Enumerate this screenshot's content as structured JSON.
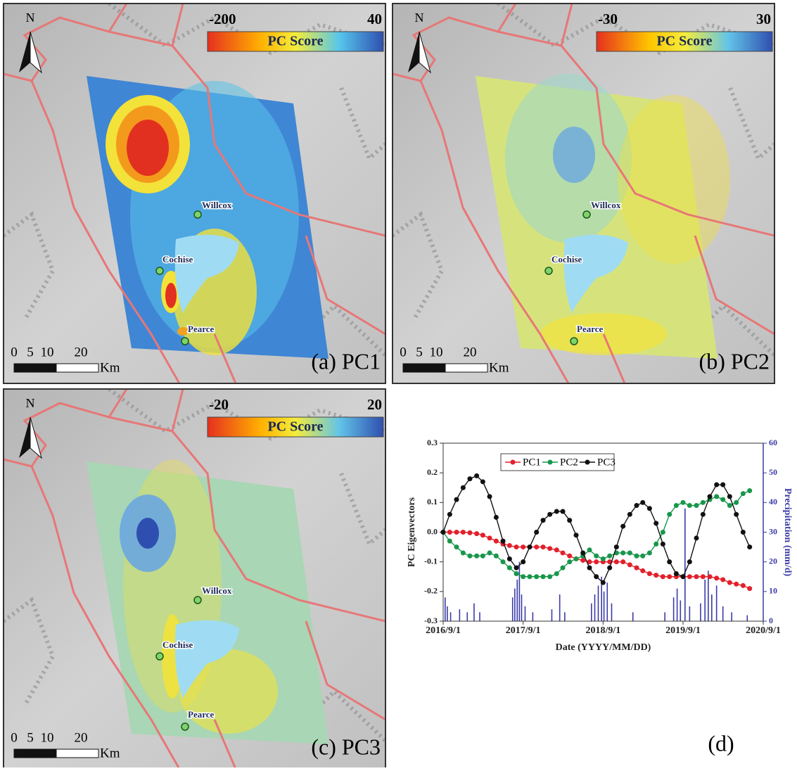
{
  "maps": [
    {
      "label": "(a) PC1",
      "colorbar": {
        "min": -200,
        "max": 40,
        "title": "PC Score"
      },
      "north": "N",
      "scale": {
        "labels": [
          "0",
          "5",
          "10",
          "20"
        ],
        "unit": "Km"
      },
      "places": [
        "Willcox",
        "Cochise",
        "Pearce"
      ]
    },
    {
      "label": "(b) PC2",
      "colorbar": {
        "min": -30,
        "max": 30,
        "title": "PC Score"
      },
      "north": "N",
      "scale": {
        "labels": [
          "0",
          "5",
          "10",
          "20"
        ],
        "unit": "Km"
      },
      "places": [
        "Willcox",
        "Cochise",
        "Pearce"
      ]
    },
    {
      "label": "(c) PC3",
      "colorbar": {
        "min": -20,
        "max": 20,
        "title": "PC Score"
      },
      "north": "N",
      "scale": {
        "labels": [
          "0",
          "5",
          "10",
          "20"
        ],
        "unit": "Km"
      },
      "places": [
        "Willcox",
        "Cochise",
        "Pearce"
      ]
    }
  ],
  "chart_data": {
    "type": "line",
    "panel_label": "(d)",
    "xlabel": "Date (YYYY/MM/DD)",
    "ylabel": "PC Eigenvectors",
    "y2label": "Precipitation (mm/d)",
    "x": [
      "2016/9/1",
      "2016/10/1",
      "2016/11/1",
      "2016/12/1",
      "2017/1/1",
      "2017/2/1",
      "2017/3/1",
      "2017/4/1",
      "2017/5/1",
      "2017/6/1",
      "2017/7/1",
      "2017/8/1",
      "2017/9/1",
      "2017/10/1",
      "2017/11/1",
      "2017/12/1",
      "2018/1/1",
      "2018/2/1",
      "2018/3/1",
      "2018/4/1",
      "2018/5/1",
      "2018/6/1",
      "2018/7/1",
      "2018/8/1",
      "2018/9/1",
      "2018/10/1",
      "2018/11/1",
      "2018/12/1",
      "2019/1/1",
      "2019/2/1",
      "2019/3/1",
      "2019/4/1",
      "2019/5/1",
      "2019/6/1",
      "2019/7/1",
      "2019/8/1",
      "2019/9/1",
      "2019/10/1",
      "2019/11/1",
      "2019/12/1",
      "2020/1/1",
      "2020/2/1",
      "2020/3/1",
      "2020/4/1",
      "2020/5/1",
      "2020/6/1",
      "2020/7/1"
    ],
    "xlim": [
      "2016/9/1",
      "2020/9/1"
    ],
    "xticks": [
      "2016/9/1",
      "2017/9/1",
      "2018/9/1",
      "2019/9/1",
      "2020/9/1"
    ],
    "ylim": [
      -0.3,
      0.3
    ],
    "yticks": [
      -0.3,
      -0.2,
      -0.1,
      {
        "value": 0,
        "label": "0.0"
      },
      0.1,
      0.2,
      0.3
    ],
    "y2lim": [
      0,
      60
    ],
    "y2ticks": [
      0,
      10,
      20,
      30,
      40,
      50,
      60
    ],
    "legend": "top",
    "series": [
      {
        "name": "PC1",
        "color": "#e3202b",
        "values": [
          0,
          0,
          0,
          0,
          -0.002,
          -0.005,
          -0.01,
          -0.02,
          -0.03,
          -0.04,
          -0.045,
          -0.05,
          -0.05,
          -0.05,
          -0.05,
          -0.05,
          -0.055,
          -0.06,
          -0.07,
          -0.08,
          -0.09,
          -0.095,
          -0.1,
          -0.1,
          -0.1,
          -0.1,
          -0.1,
          -0.1,
          -0.11,
          -0.12,
          -0.13,
          -0.14,
          -0.145,
          -0.15,
          -0.15,
          -0.15,
          -0.15,
          -0.15,
          -0.15,
          -0.15,
          -0.15,
          -0.155,
          -0.16,
          -0.17,
          -0.175,
          -0.18,
          -0.19
        ]
      },
      {
        "name": "PC2",
        "color": "#17974a",
        "values": [
          0,
          -0.03,
          -0.05,
          -0.07,
          -0.08,
          -0.08,
          -0.08,
          -0.07,
          -0.08,
          -0.1,
          -0.12,
          -0.14,
          -0.15,
          -0.15,
          -0.15,
          -0.15,
          -0.15,
          -0.14,
          -0.12,
          -0.1,
          -0.09,
          -0.08,
          -0.06,
          -0.08,
          -0.09,
          -0.08,
          -0.07,
          -0.07,
          -0.07,
          -0.08,
          -0.08,
          -0.07,
          -0.04,
          0,
          0.06,
          0.09,
          0.1,
          0.09,
          0.09,
          0.1,
          0.11,
          0.12,
          0.11,
          0.09,
          0.1,
          0.13,
          0.14
        ]
      },
      {
        "name": "PC3",
        "color": "#111111",
        "values": [
          0,
          0.06,
          0.11,
          0.15,
          0.18,
          0.19,
          0.17,
          0.12,
          0.05,
          -0.03,
          -0.09,
          -0.12,
          -0.1,
          -0.05,
          0,
          0.04,
          0.06,
          0.07,
          0.07,
          0.04,
          -0.01,
          -0.07,
          -0.12,
          -0.15,
          -0.17,
          -0.12,
          -0.05,
          0.02,
          0.06,
          0.09,
          0.1,
          0.08,
          0.03,
          -0.04,
          -0.1,
          -0.14,
          -0.15,
          -0.1,
          -0.02,
          0.06,
          0.12,
          0.16,
          0.16,
          0.12,
          0.06,
          0,
          -0.05
        ]
      },
      {
        "type": "bar",
        "axis": "y2",
        "color": "#3b3ba8",
        "x": [
          "2016/9/10",
          "2016/9/20",
          "2016/10/5",
          "2016/11/15",
          "2016/12/20",
          "2017/1/20",
          "2017/2/15",
          "2017/7/15",
          "2017/7/25",
          "2017/8/5",
          "2017/8/15",
          "2017/8/25",
          "2017/9/10",
          "2017/10/15",
          "2018/1/10",
          "2018/2/15",
          "2018/3/10",
          "2018/7/10",
          "2018/7/25",
          "2018/8/10",
          "2018/8/25",
          "2018/9/5",
          "2018/9/20",
          "2018/10/10",
          "2019/1/15",
          "2019/6/10",
          "2019/7/20",
          "2019/8/5",
          "2019/8/20",
          "2019/9/10",
          "2019/10/1",
          "2019/11/20",
          "2019/12/10",
          "2019/12/25",
          "2020/1/10",
          "2020/2/1",
          "2020/3/1",
          "2020/4/10",
          "2020/6/20"
        ],
        "values": [
          8,
          5,
          3,
          4,
          3,
          6,
          3,
          8,
          11,
          14,
          20,
          9,
          5,
          3,
          4,
          9,
          3,
          6,
          9,
          12,
          15,
          10,
          13,
          6,
          3,
          3,
          8,
          11,
          7,
          38,
          5,
          6,
          14,
          17,
          9,
          12,
          5,
          3,
          2
        ]
      }
    ]
  }
}
